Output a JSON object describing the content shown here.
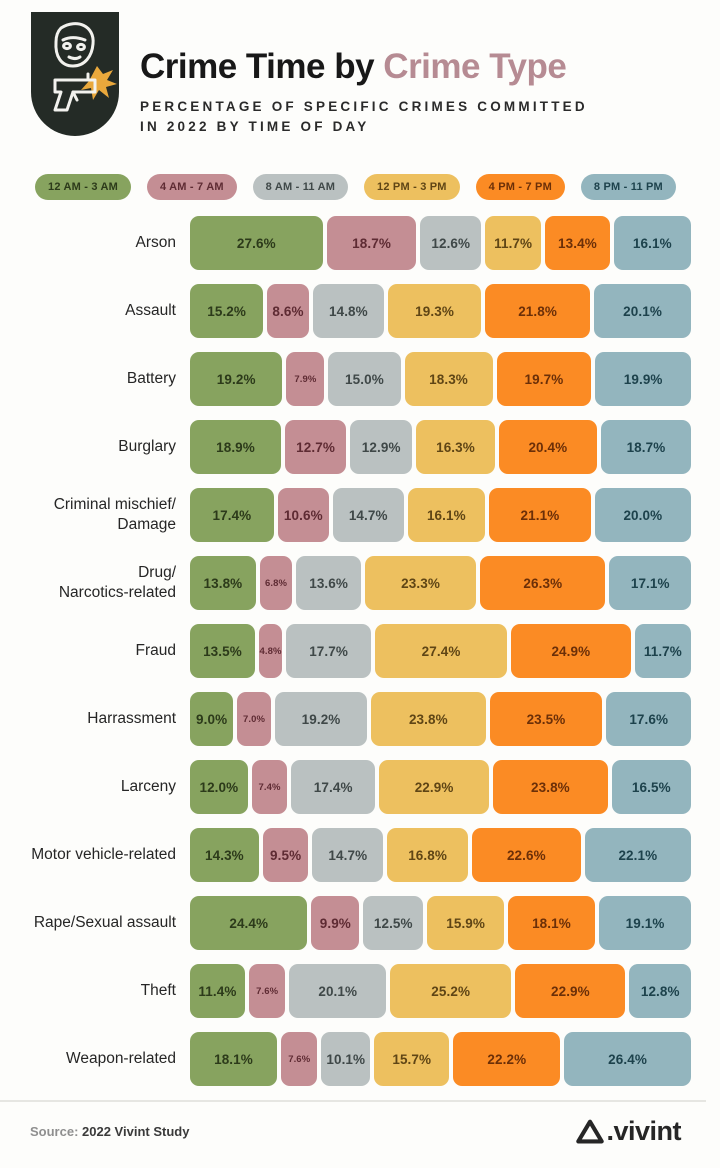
{
  "header": {
    "logo": "burglar-with-gun-badge",
    "title_main": "Crime Time by",
    "title_accent": " Crime Type",
    "accent_color": "#b68b93",
    "subtitle_line1": "PERCENTAGE OF SPECIFIC CRIMES COMMITTED",
    "subtitle_line2": "IN 2022 BY TIME OF DAY"
  },
  "legend": {
    "items": [
      {
        "label": "12 AM - 3 AM",
        "color": "#87A35F",
        "text_color": "#2c3a1a"
      },
      {
        "label": "4 AM - 7 AM",
        "color": "#C48E94",
        "text_color": "#5e2b33"
      },
      {
        "label": "8 AM - 11 AM",
        "color": "#BAC1C1",
        "text_color": "#3f4848"
      },
      {
        "label": "12 PM - 3 PM",
        "color": "#EDC05F",
        "text_color": "#5f4515"
      },
      {
        "label": "4 PM - 7 PM",
        "color": "#FB8B24",
        "text_color": "#6b2f08"
      },
      {
        "label": "8 PM - 11 PM",
        "color": "#93B5BE",
        "text_color": "#1d424c"
      }
    ]
  },
  "chart_data": {
    "type": "bar",
    "variant": "horizontal-stacked-100percent",
    "title": "Crime Time by Crime Type",
    "subtitle": "Percentage of specific crimes committed in 2022 by time of day",
    "value_suffix": "%",
    "legend_position": "top",
    "series_labels": [
      "12 AM - 3 AM",
      "4 AM - 7 AM",
      "8 AM - 11 AM",
      "12 PM - 3 PM",
      "4 PM - 7 PM",
      "8 PM - 11 PM"
    ],
    "categories": [
      [
        "Arson"
      ],
      [
        "Assault"
      ],
      [
        "Battery"
      ],
      [
        "Burglary"
      ],
      [
        "Criminal mischief/",
        "Damage"
      ],
      [
        "Drug/",
        "Narcotics-related"
      ],
      [
        "Fraud"
      ],
      [
        "Harrassment"
      ],
      [
        "Larceny"
      ],
      [
        "Motor vehicle-related"
      ],
      [
        "Rape/Sexual assault"
      ],
      [
        "Theft"
      ],
      [
        "Weapon-related"
      ]
    ],
    "rows": [
      [
        27.6,
        18.7,
        12.6,
        11.7,
        13.4,
        16.1
      ],
      [
        15.2,
        8.6,
        14.8,
        19.3,
        21.8,
        20.1
      ],
      [
        19.2,
        7.9,
        15.0,
        18.3,
        19.7,
        19.9
      ],
      [
        18.9,
        12.7,
        12.9,
        16.3,
        20.4,
        18.7
      ],
      [
        17.4,
        10.6,
        14.7,
        16.1,
        21.1,
        20.0
      ],
      [
        13.8,
        6.8,
        13.6,
        23.3,
        26.3,
        17.1
      ],
      [
        13.5,
        4.8,
        17.7,
        27.4,
        24.9,
        11.7
      ],
      [
        9.0,
        7.0,
        19.2,
        23.8,
        23.5,
        17.6
      ],
      [
        12.0,
        7.4,
        17.4,
        22.9,
        23.8,
        16.5
      ],
      [
        14.3,
        9.5,
        14.7,
        16.8,
        22.6,
        22.1
      ],
      [
        24.4,
        9.9,
        12.5,
        15.9,
        18.1,
        19.1
      ],
      [
        11.4,
        7.6,
        20.1,
        25.2,
        22.9,
        12.8
      ],
      [
        18.1,
        7.6,
        10.1,
        15.7,
        22.2,
        26.4
      ]
    ]
  },
  "footer": {
    "source_label": "Source:",
    "source_value": " 2022 Vivint Study",
    "brand_word": ".vivint"
  }
}
